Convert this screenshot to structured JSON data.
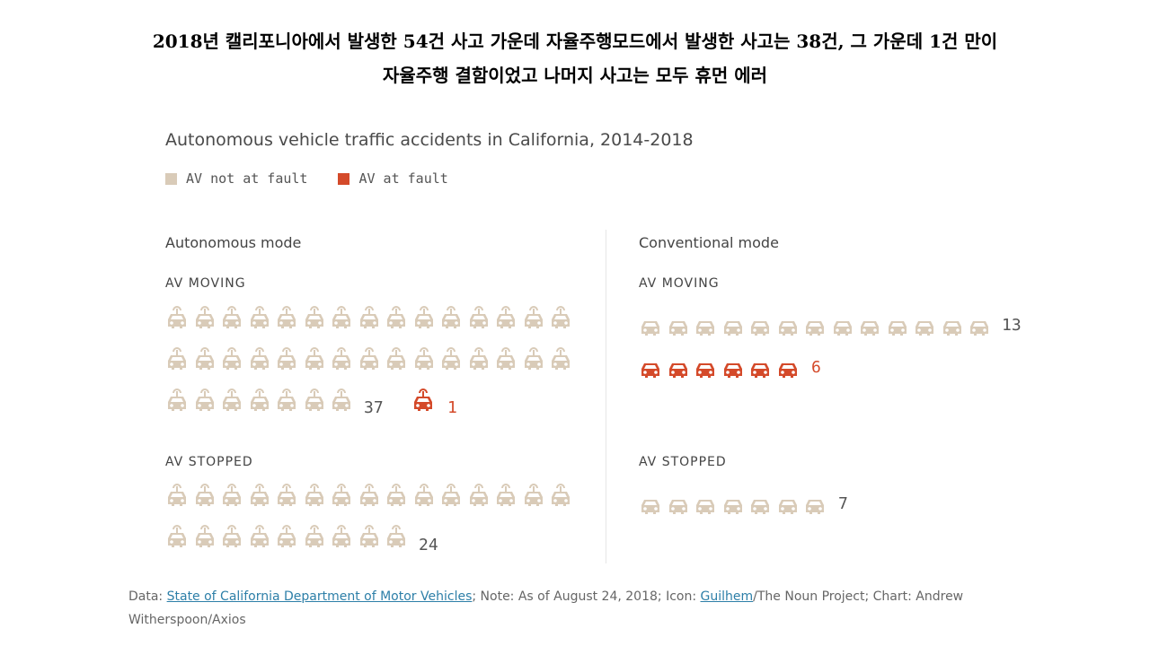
{
  "slide": {
    "title_line1": "2018년 캘리포니아에서 발생한 54건 사고 가운데 자율주행모드에서 발생한 사고는 38건, 그 가운데 1건 만이",
    "title_line2": "자율주행 결함이었고 나머지 사고는 모두 휴먼 에러"
  },
  "chart_data": {
    "type": "pictogram",
    "title": "Autonomous vehicle traffic accidents in California, 2014-2018",
    "legend": [
      {
        "label": "AV not at fault",
        "color": "#d9cbb8"
      },
      {
        "label": "AV at fault",
        "color": "#d44a2a"
      }
    ],
    "panels": [
      {
        "name": "Autonomous mode",
        "icon": "autonomous-car-icon",
        "groups": [
          {
            "name": "AV MOVING",
            "not_at_fault": 37,
            "at_fault": 1
          },
          {
            "name": "AV STOPPED",
            "not_at_fault": 24,
            "at_fault": 0
          }
        ]
      },
      {
        "name": "Conventional mode",
        "icon": "car-icon",
        "groups": [
          {
            "name": "AV MOVING",
            "not_at_fault": 13,
            "at_fault": 6
          },
          {
            "name": "AV STOPPED",
            "not_at_fault": 7,
            "at_fault": 0
          }
        ]
      }
    ]
  },
  "labels": {
    "auto_moving_nf": "37",
    "auto_moving_f": "1",
    "auto_stopped_nf": "24",
    "conv_moving_nf": "13",
    "conv_moving_f": "6",
    "conv_stopped_nf": "7"
  },
  "source": {
    "prefix": "Data: ",
    "link1": "State of California Department of Motor Vehicles",
    "mid": "; Note: As of August 24, 2018; Icon: ",
    "link2": "Guilhem",
    "suffix": "/The Noun Project; Chart: Andrew Witherspoon/Axios"
  },
  "colors": {
    "not_at_fault": "#d9cbb8",
    "at_fault": "#d44a2a"
  }
}
